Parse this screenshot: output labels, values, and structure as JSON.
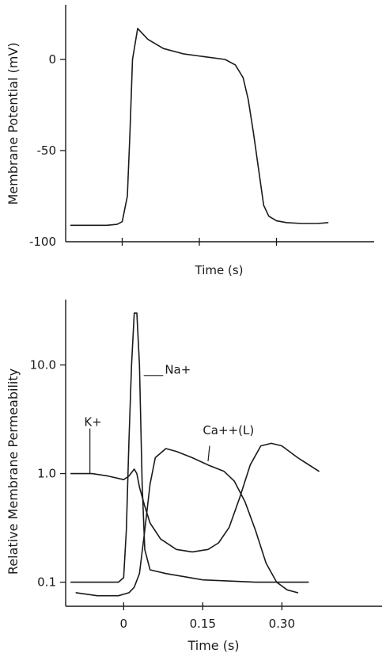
{
  "chart_data": [
    {
      "type": "line",
      "title": "",
      "xlabel": "Time (s)",
      "ylabel": "Membrane Potential (mV)",
      "xlim": [
        -0.11,
        0.49
      ],
      "ylim": [
        -100,
        30
      ],
      "yticks": [
        0,
        -50,
        -100
      ],
      "ytick_labels": [
        "0",
        "-50",
        "-100"
      ],
      "xticks": [
        0,
        0.15,
        0.3
      ],
      "xtick_labels": [
        "",
        "",
        ""
      ],
      "grid": false,
      "series": [
        {
          "name": "",
          "x": [
            -0.1,
            -0.07,
            -0.03,
            -0.01,
            0.0,
            0.01,
            0.015,
            0.02,
            0.03,
            0.05,
            0.08,
            0.12,
            0.16,
            0.2,
            0.22,
            0.235,
            0.245,
            0.255,
            0.265,
            0.275,
            0.285,
            0.3,
            0.32,
            0.35,
            0.38,
            0.4
          ],
          "y": [
            -91,
            -91,
            -91,
            -90.5,
            -89,
            -75,
            -40,
            0,
            17,
            11,
            6,
            3,
            1.5,
            0,
            -3,
            -10,
            -22,
            -40,
            -60,
            -80,
            -86,
            -88.5,
            -89.5,
            -90,
            -90,
            -89.5
          ]
        }
      ]
    },
    {
      "type": "line",
      "title": "",
      "xlabel": "Time (s)",
      "ylabel": "Relative Membrane Permeability",
      "yscale": "log",
      "xlim": [
        -0.11,
        0.49
      ],
      "ylim": [
        0.06,
        40
      ],
      "yticks": [
        10.0,
        1.0,
        0.1
      ],
      "ytick_labels": [
        "10.0",
        "1.0",
        "0.1"
      ],
      "xticks": [
        0,
        0.15,
        0.3
      ],
      "xtick_labels": [
        "0",
        "0.15",
        "0.30"
      ],
      "grid": false,
      "annotations": [
        {
          "text": "K+",
          "series": 0
        },
        {
          "text": "Na+",
          "series": 1
        },
        {
          "text": "Ca++(L)",
          "series": 2
        }
      ],
      "series": [
        {
          "name": "K+",
          "x": [
            -0.1,
            -0.06,
            -0.03,
            0.0,
            0.01,
            0.02,
            0.025,
            0.03,
            0.04,
            0.05,
            0.07,
            0.1,
            0.13,
            0.16,
            0.18,
            0.2,
            0.22,
            0.24,
            0.26,
            0.28,
            0.3,
            0.33,
            0.37
          ],
          "y": [
            1.0,
            1.0,
            0.95,
            0.88,
            0.95,
            1.1,
            1.0,
            0.75,
            0.5,
            0.35,
            0.25,
            0.2,
            0.19,
            0.2,
            0.23,
            0.32,
            0.6,
            1.2,
            1.8,
            1.9,
            1.8,
            1.4,
            1.05
          ]
        },
        {
          "name": "Na+",
          "x": [
            -0.1,
            -0.05,
            -0.01,
            0.0,
            0.005,
            0.01,
            0.015,
            0.02,
            0.025,
            0.03,
            0.035,
            0.04,
            0.05,
            0.08,
            0.15,
            0.25,
            0.35
          ],
          "y": [
            0.1,
            0.1,
            0.1,
            0.11,
            0.3,
            2.0,
            10.0,
            30.0,
            30.0,
            10.0,
            0.8,
            0.2,
            0.13,
            0.12,
            0.105,
            0.1,
            0.1
          ]
        },
        {
          "name": "Ca++(L)",
          "x": [
            -0.09,
            -0.05,
            -0.01,
            0.01,
            0.02,
            0.03,
            0.04,
            0.05,
            0.06,
            0.08,
            0.1,
            0.13,
            0.16,
            0.19,
            0.21,
            0.23,
            0.25,
            0.27,
            0.29,
            0.31,
            0.33
          ],
          "y": [
            0.08,
            0.075,
            0.075,
            0.08,
            0.09,
            0.12,
            0.3,
            0.8,
            1.4,
            1.7,
            1.6,
            1.4,
            1.2,
            1.05,
            0.85,
            0.55,
            0.3,
            0.15,
            0.1,
            0.085,
            0.08
          ]
        }
      ]
    }
  ]
}
